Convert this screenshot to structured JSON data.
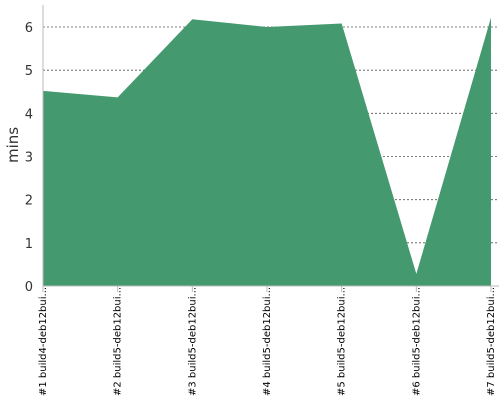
{
  "chart_data": {
    "type": "area",
    "categories": [
      "#1 build4-deb12bui...",
      "#2 build5-deb12bui...",
      "#3 build5-deb12bui...",
      "#4 build5-deb12bui...",
      "#5 build5-deb12bui...",
      "#6 build5-deb12bui...",
      "#7 build5-deb12bui..."
    ],
    "series": [
      {
        "values": [
          4.52,
          4.37,
          6.18,
          6.0,
          6.08,
          0.28,
          6.22
        ]
      }
    ],
    "xlabel": "",
    "ylabel": "mins",
    "ylim": [
      0,
      6
    ],
    "yticks": [
      "0",
      "1",
      "2",
      "3",
      "4",
      "5",
      "6"
    ],
    "grid": true,
    "grid_style": "dotted",
    "legend": "none",
    "colors": {
      "area": "#449a6e",
      "grid": "#555555",
      "axis": "#bbbbbb"
    }
  }
}
